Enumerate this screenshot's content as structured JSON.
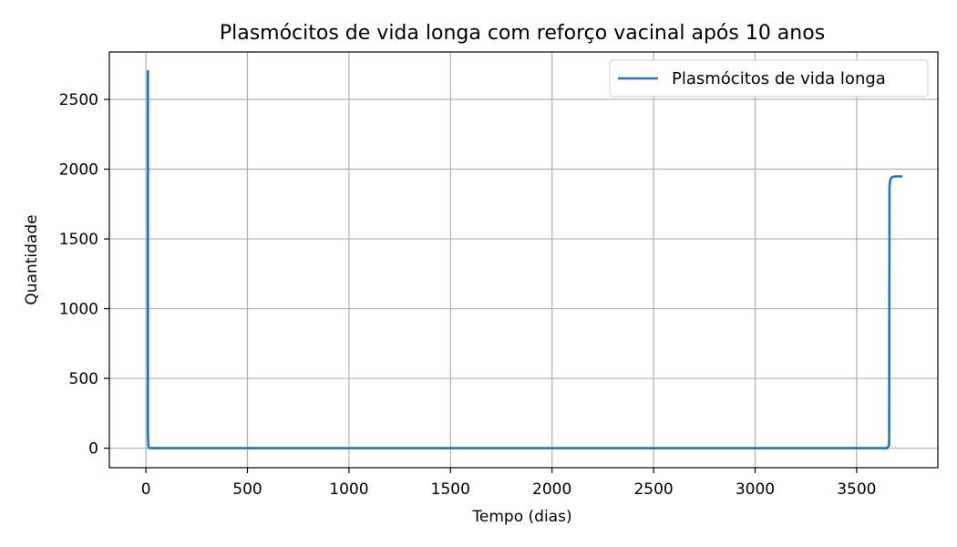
{
  "chart_data": {
    "type": "line",
    "title": "Plasmócitos de vida longa com reforço vacinal após 10 anos",
    "xlabel": "Tempo (dias)",
    "ylabel": "Quantidade",
    "xlim": [
      -180,
      3900
    ],
    "ylim": [
      -140,
      2840
    ],
    "xticks": [
      0,
      500,
      1000,
      1500,
      2000,
      2500,
      3000,
      3500
    ],
    "yticks": [
      0,
      500,
      1000,
      1500,
      2000,
      2500
    ],
    "grid": true,
    "legend": "top-right",
    "series": [
      {
        "name": "Plasmócitos de vida longa",
        "color": "#1f77b4",
        "x": [
          10,
          10,
          12,
          14,
          16,
          20,
          30,
          100,
          500,
          1000,
          1500,
          2000,
          2500,
          3000,
          3500,
          3650,
          3660,
          3662,
          3664,
          3668,
          3672,
          3680,
          3690,
          3700,
          3720
        ],
        "y": [
          2700,
          100,
          20,
          5,
          2,
          1,
          0,
          0,
          0,
          0,
          0,
          0,
          0,
          0,
          0,
          0,
          20,
          1880,
          1910,
          1930,
          1940,
          1945,
          1948,
          1948,
          1948
        ]
      }
    ]
  }
}
